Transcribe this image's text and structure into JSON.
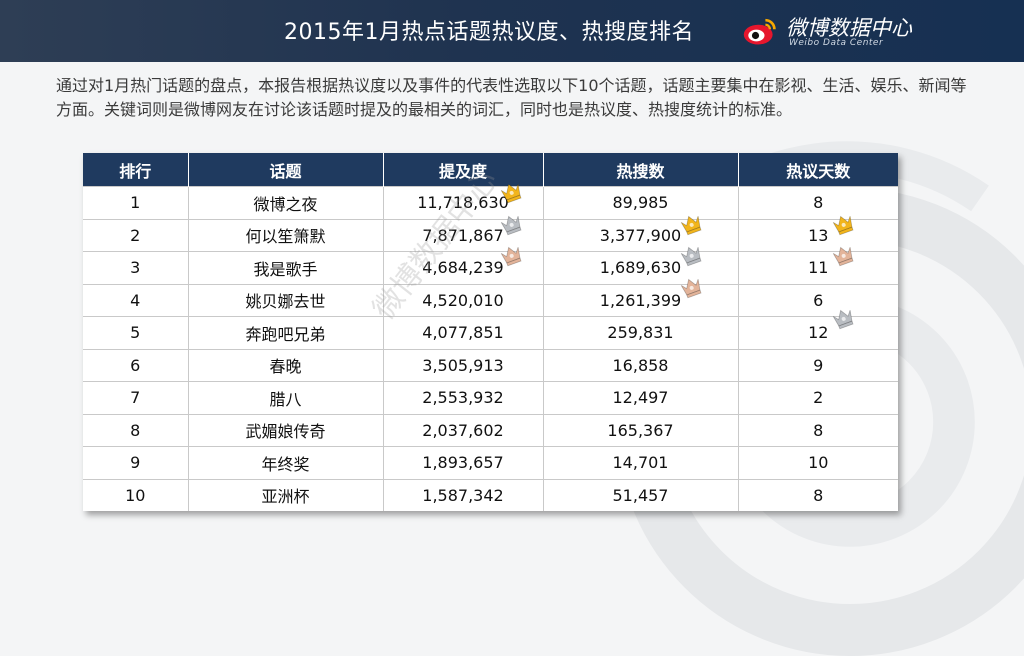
{
  "header": {
    "title": "2015年1月热点话题热议度、热搜度排名",
    "brand_name": "微博数据中心",
    "brand_sub": "Weibo Data Center"
  },
  "intro": "通过对1月热门话题的盘点，本报告根据热议度以及事件的代表性选取以下10个话题，话题主要集中在影视、生活、娱乐、新闻等方面。关键词则是微博网友在讨论该话题时提及的最相关的词汇，同时也是热议度、热搜度统计的标准。",
  "watermark": "微博数据中心",
  "table": {
    "headers": [
      "排行",
      "话题",
      "提及度",
      "热搜数",
      "热议天数"
    ],
    "rows": [
      [
        "1",
        "微博之夜",
        "11,718,630",
        "89,985",
        "8"
      ],
      [
        "2",
        "何以笙箫默",
        "7,871,867",
        "3,377,900",
        "13"
      ],
      [
        "3",
        "我是歌手",
        "4,684,239",
        "1,689,630",
        "11"
      ],
      [
        "4",
        "姚贝娜去世",
        "4,520,010",
        "1,261,399",
        "6"
      ],
      [
        "5",
        "奔跑吧兄弟",
        "4,077,851",
        "259,831",
        "12"
      ],
      [
        "6",
        "春晚",
        "3,505,913",
        "16,858",
        "9"
      ],
      [
        "7",
        "腊八",
        "2,553,932",
        "12,497",
        "2"
      ],
      [
        "8",
        "武媚娘传奇",
        "2,037,602",
        "165,367",
        "8"
      ],
      [
        "9",
        "年终奖",
        "1,893,657",
        "14,701",
        "10"
      ],
      [
        "10",
        "亚洲杯",
        "1,587,342",
        "51,457",
        "8"
      ]
    ]
  },
  "colors": {
    "header_bg": "#1f3350",
    "table_header_bg": "#1f3a5f",
    "gold": "#f2b51c",
    "silver": "#b9bdc2",
    "bronze": "#e3b49a"
  },
  "badges": [
    {
      "column": "提及度",
      "row": 1,
      "medal": "gold-crown-icon"
    },
    {
      "column": "提及度",
      "row": 2,
      "medal": "silver-crown-icon"
    },
    {
      "column": "提及度",
      "row": 3,
      "medal": "bronze-crown-icon"
    },
    {
      "column": "热搜数",
      "row": 2,
      "medal": "gold-crown-icon"
    },
    {
      "column": "热搜数",
      "row": 3,
      "medal": "silver-crown-icon"
    },
    {
      "column": "热搜数",
      "row": 4,
      "medal": "bronze-crown-icon"
    },
    {
      "column": "热议天数",
      "row": 2,
      "medal": "gold-crown-icon"
    },
    {
      "column": "热议天数",
      "row": 3,
      "medal": "bronze-crown-icon"
    },
    {
      "column": "热议天数",
      "row": 5,
      "medal": "silver-crown-icon"
    }
  ]
}
